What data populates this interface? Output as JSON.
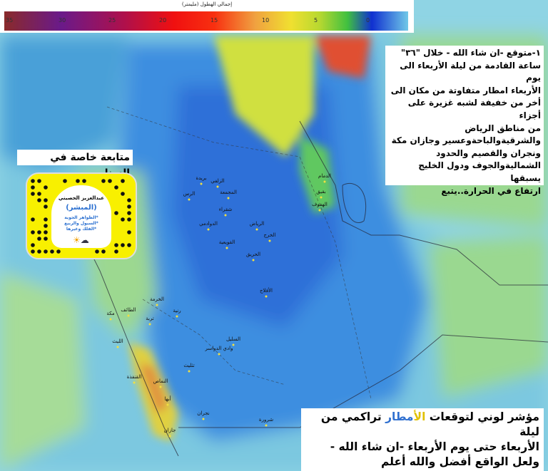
{
  "legend": {
    "title": "إجمالي الهطول (مليمتر)",
    "unit": "mm",
    "ticks": [
      "35",
      "30",
      "25",
      "20",
      "15",
      "10",
      "5",
      "0"
    ],
    "colors": [
      "#8a2a2a",
      "#6a1a8a",
      "#b0104a",
      "#f01010",
      "#f0a040",
      "#f0e030",
      "#40c040",
      "#1030d0",
      "#70c8e8"
    ]
  },
  "forecast_box": {
    "lines": [
      "١-متوقع -ان شاء الله - خلال \"٣٦\"",
      "ساعة القادمة من ليلة الأربعاء الى يوم",
      "الأربعاء امطار متفاوتة من مكان الى",
      "أخر من خفيفة لشبه غزيرة على أجزاء",
      "من مناطق الرياض",
      "والشرقيةوالباحةوعسير وجازان مكة",
      "ونجران والقصيم والحدود",
      "الشماليةوالجوف ودول الخليج يسبقها",
      "ارتفاع في الحرارة..يتبع"
    ]
  },
  "bottom_box": {
    "line1_a": "مؤشر لوني لتوقعات ",
    "line1_hl1": "الأ",
    "line1_hl2": "مطار",
    "line1_b": " تراكمي من ليلة",
    "line2": "الأربعاء حتى يوم الأربعاء -ان شاء الله -",
    "line3": "ولعل الواقع أفضل والله أعلم"
  },
  "snapchat": {
    "title": "متابعة خاصة في السناب",
    "name": "عبدالعزيز الحصيني",
    "handle": "(المبشر)",
    "topics": [
      "*الظواهر الجوية",
      "*السيول والربيع",
      "*الفلك وغيرها"
    ]
  },
  "cities": [
    {
      "name": "بريدة"
    },
    {
      "name": "الزلفي"
    },
    {
      "name": "الرس"
    },
    {
      "name": "المجمعة"
    },
    {
      "name": "شقراء"
    },
    {
      "name": "الرياض"
    },
    {
      "name": "الدوادمي"
    },
    {
      "name": "القويعية"
    },
    {
      "name": "الخرج"
    },
    {
      "name": "الحريق"
    },
    {
      "name": "الدمام"
    },
    {
      "name": "بقيق"
    },
    {
      "name": "الهفوف"
    },
    {
      "name": "الأفلاج"
    },
    {
      "name": "الطائف"
    },
    {
      "name": "مكة"
    },
    {
      "name": "تربة"
    },
    {
      "name": "رنية"
    },
    {
      "name": "الخرمة"
    },
    {
      "name": "الليث"
    },
    {
      "name": "القنفذة"
    },
    {
      "name": "النماص"
    },
    {
      "name": "أبها"
    },
    {
      "name": "نجران"
    },
    {
      "name": "شرورة"
    },
    {
      "name": "السليل"
    },
    {
      "name": "وادي الدواسر"
    },
    {
      "name": "تثليث"
    },
    {
      "name": "جازان"
    }
  ]
}
